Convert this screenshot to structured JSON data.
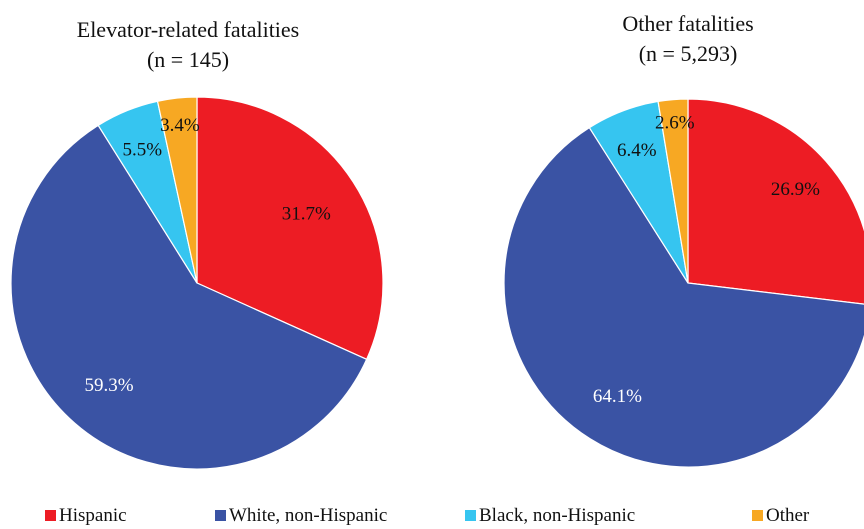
{
  "chart_data": [
    {
      "type": "pie",
      "title": "Elevator-related fatalities",
      "subtitle": "(n = 145)",
      "categories": [
        "Hispanic",
        "White, non-Hispanic",
        "Black, non-Hispanic",
        "Other"
      ],
      "values": [
        31.7,
        59.3,
        5.5,
        3.4
      ],
      "data_labels": [
        "31.7%",
        "59.3%",
        "5.5%",
        "3.4%"
      ],
      "start": "12 o'clock",
      "direction": "clockwise"
    },
    {
      "type": "pie",
      "title": "Other fatalities",
      "subtitle": "(n = 5,293)",
      "categories": [
        "Hispanic",
        "White, non-Hispanic",
        "Black, non-Hispanic",
        "Other"
      ],
      "values": [
        26.9,
        64.1,
        6.4,
        2.6
      ],
      "data_labels": [
        "26.9%",
        "64.1%",
        "6.4%",
        "2.6%"
      ],
      "start": "12 o'clock",
      "direction": "clockwise"
    }
  ],
  "legend": {
    "position": "bottom",
    "items": [
      {
        "label": "Hispanic",
        "color": "#ed1c24"
      },
      {
        "label": "White, non-Hispanic",
        "color": "#3a53a4"
      },
      {
        "label": "Black, non-Hispanic",
        "color": "#36c5f0"
      },
      {
        "label": "Other",
        "color": "#f7a823"
      }
    ]
  },
  "colors": [
    "#ed1c24",
    "#3a53a4",
    "#36c5f0",
    "#f7a823"
  ],
  "label_colors": [
    "#111111",
    "#ffffff",
    "#111111",
    "#111111"
  ]
}
